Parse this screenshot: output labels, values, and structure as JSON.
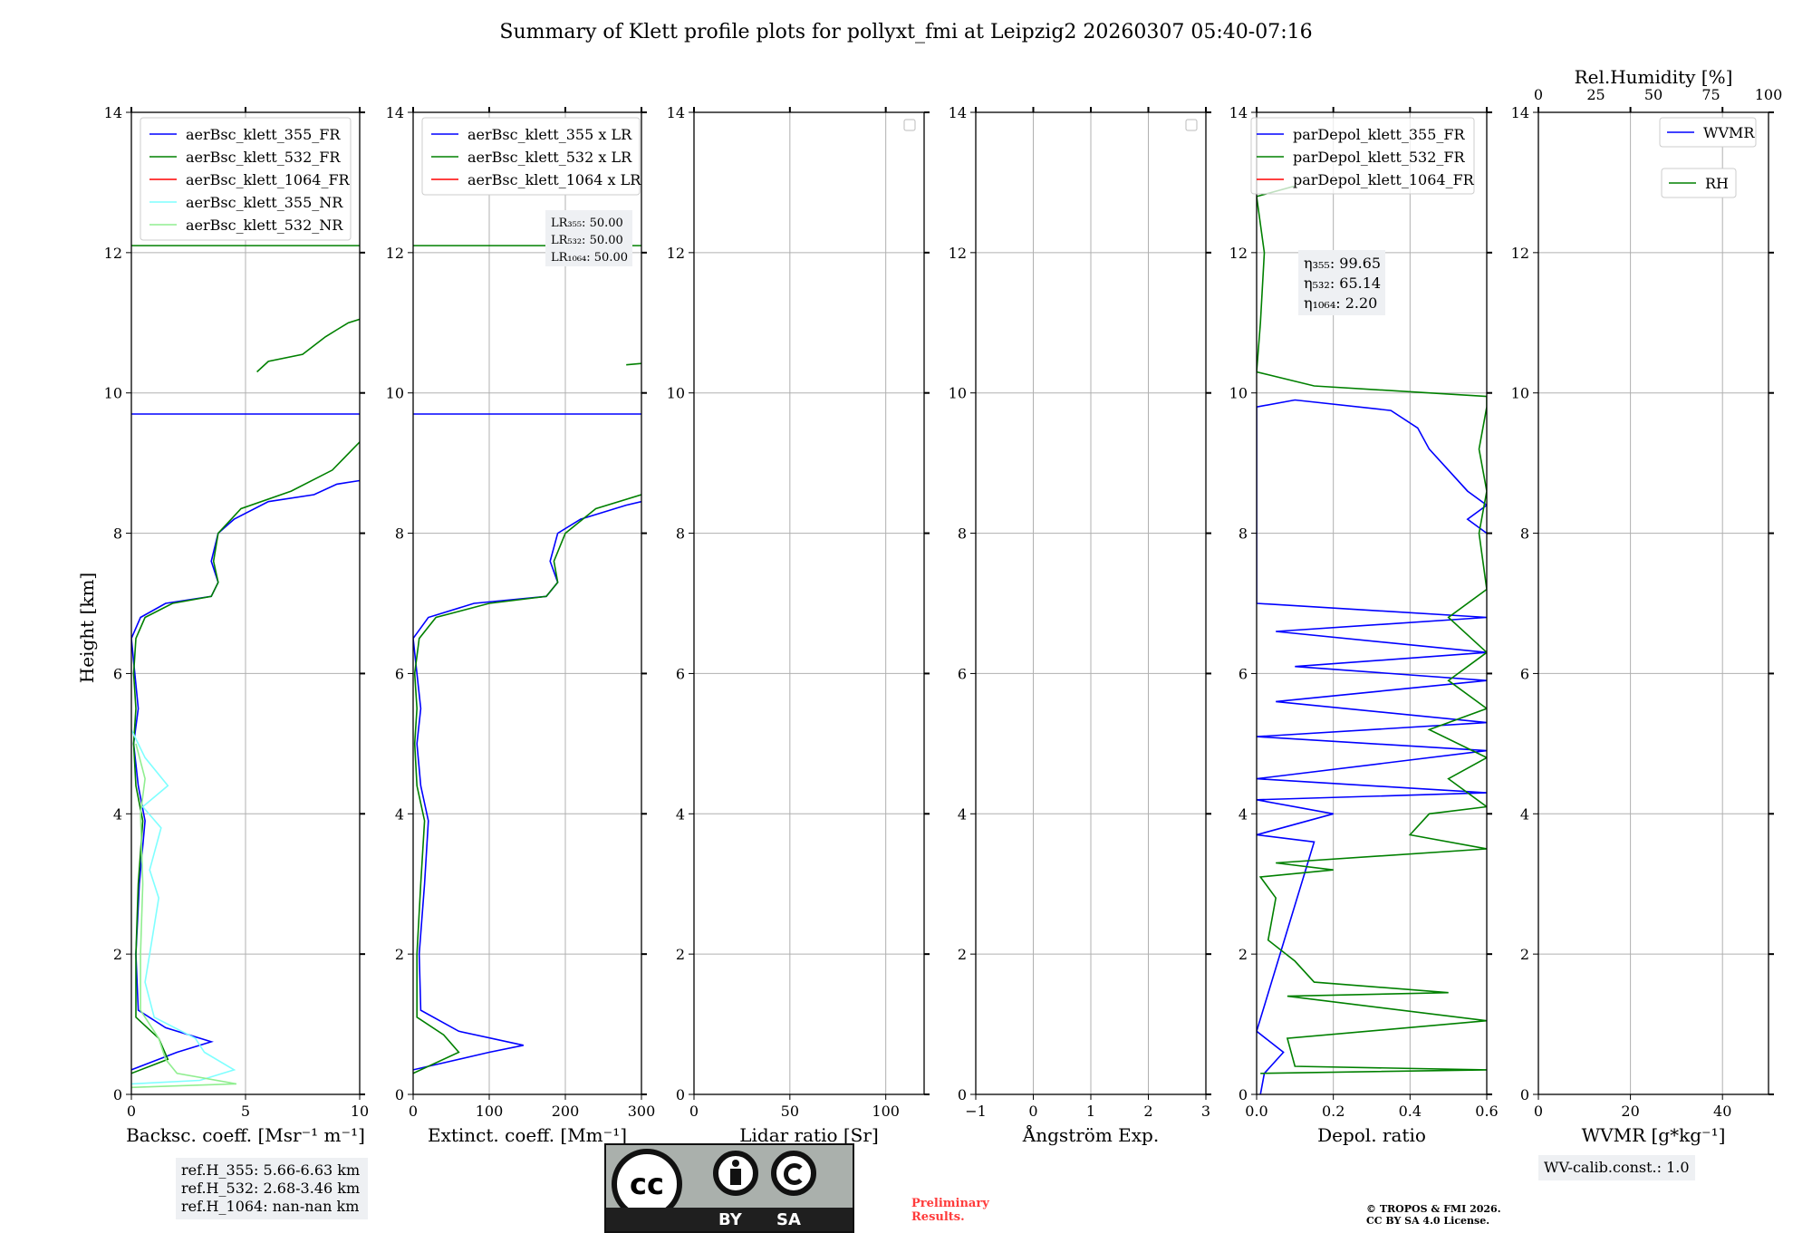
{
  "title": "Summary of Klett profile plots for pollyxt_fmi at Leipzig2 20260307 05:40-07:16",
  "y_label": "Height [km]",
  "y_ticks": [
    "0",
    "2",
    "4",
    "6",
    "8",
    "10",
    "12",
    "14"
  ],
  "colors": {
    "c355": "#0000ff",
    "c532": "#008000",
    "c1064": "#ff0000",
    "nr355": "#7fffff",
    "nr532": "#90ee90"
  },
  "chart_data": [
    {
      "type": "line",
      "name": "backscatter",
      "xlabel": "Backsc. coeff. [Msr⁻¹ m⁻¹]",
      "xlim": [
        0,
        10
      ],
      "ylim": [
        0,
        14
      ],
      "x_ticks": [
        "0",
        "5",
        "10"
      ],
      "legend": [
        "aerBsc_klett_355_FR",
        "aerBsc_klett_532_FR",
        "aerBsc_klett_1064_FR",
        "aerBsc_klett_355_NR",
        "aerBsc_klett_532_NR"
      ],
      "series": [
        {
          "name": "aerBsc_klett_355_FR",
          "color": "c355",
          "points": [
            [
              0,
              0.35
            ],
            [
              2,
              0.6
            ],
            [
              3.5,
              0.75
            ],
            [
              1.5,
              0.95
            ],
            [
              0.3,
              1.2
            ],
            [
              0.2,
              2
            ],
            [
              0.35,
              3
            ],
            [
              0.6,
              3.9
            ],
            [
              0.3,
              4.4
            ],
            [
              0.1,
              5
            ],
            [
              0.3,
              5.5
            ],
            [
              0.15,
              6
            ],
            [
              0,
              6.5
            ],
            [
              0.4,
              6.8
            ],
            [
              1.5,
              7
            ],
            [
              3.5,
              7.1
            ],
            [
              3.8,
              7.3
            ],
            [
              3.5,
              7.6
            ],
            [
              3.8,
              8
            ],
            [
              4.5,
              8.2
            ],
            [
              6,
              8.45
            ],
            [
              8,
              8.55
            ],
            [
              9,
              8.7
            ],
            [
              10,
              8.75
            ]
          ]
        },
        {
          "name": "aerBsc_klett_532_FR",
          "color": "c532",
          "points": [
            [
              0,
              0.3
            ],
            [
              1.6,
              0.5
            ],
            [
              1.2,
              0.8
            ],
            [
              0.2,
              1.1
            ],
            [
              0.2,
              2
            ],
            [
              0.3,
              3
            ],
            [
              0.5,
              3.9
            ],
            [
              0.2,
              4.4
            ],
            [
              0.1,
              5
            ],
            [
              0.2,
              5.5
            ],
            [
              0.1,
              6
            ],
            [
              0.2,
              6.5
            ],
            [
              0.6,
              6.8
            ],
            [
              1.8,
              7
            ],
            [
              3.5,
              7.1
            ],
            [
              3.8,
              7.3
            ],
            [
              3.6,
              7.6
            ],
            [
              3.8,
              8
            ],
            [
              4.8,
              8.35
            ],
            [
              7,
              8.6
            ],
            [
              8.8,
              8.9
            ],
            [
              10,
              9.3
            ]
          ]
        },
        {
          "name": "aerBsc_klett_532_FR_upper",
          "color": "c532",
          "points": [
            [
              5.5,
              10.3
            ],
            [
              6,
              10.45
            ],
            [
              7.5,
              10.55
            ],
            [
              8.5,
              10.8
            ],
            [
              9,
              10.9
            ],
            [
              9.5,
              11
            ],
            [
              10,
              11.05
            ]
          ]
        },
        {
          "name": "aerBsc_klett_355_NR",
          "color": "nr355",
          "points": [
            [
              0,
              0.15
            ],
            [
              3,
              0.2
            ],
            [
              4.5,
              0.35
            ],
            [
              3.2,
              0.6
            ],
            [
              2.8,
              0.8
            ],
            [
              1.0,
              1.1
            ],
            [
              0.6,
              1.6
            ],
            [
              0.9,
              2.2
            ],
            [
              1.2,
              2.8
            ],
            [
              0.8,
              3.2
            ],
            [
              1.3,
              3.8
            ],
            [
              0.5,
              4.1
            ],
            [
              1.6,
              4.4
            ],
            [
              0.6,
              4.8
            ],
            [
              0,
              5.2
            ]
          ]
        },
        {
          "name": "aerBsc_klett_532_NR",
          "color": "nr532",
          "points": [
            [
              0,
              0.1
            ],
            [
              4.6,
              0.15
            ],
            [
              2.0,
              0.3
            ],
            [
              1.5,
              0.5
            ],
            [
              1.2,
              0.8
            ],
            [
              0.4,
              1.2
            ],
            [
              0.4,
              2
            ],
            [
              0.5,
              3
            ],
            [
              0.4,
              4
            ],
            [
              0.6,
              4.5
            ],
            [
              0.2,
              5
            ]
          ]
        }
      ],
      "hlines": [
        {
          "y": 12.1,
          "color": "c532"
        },
        {
          "y": 9.7,
          "color": "c355"
        }
      ]
    },
    {
      "type": "line",
      "name": "extinction",
      "xlabel": "Extinct. coeff. [Mm⁻¹]",
      "xlim": [
        0,
        300
      ],
      "ylim": [
        0,
        14
      ],
      "x_ticks": [
        "0",
        "100",
        "200",
        "300"
      ],
      "legend": [
        "aerBsc_klett_355 x LR",
        "aerBsc_klett_532 x LR",
        "aerBsc_klett_1064 x LR"
      ],
      "lr_labels": [
        "LR₃₅₅: 50.00",
        "LR₅₃₂: 50.00",
        "LR₁₀₆₄: 50.00"
      ],
      "series": [
        {
          "name": "aerBsc_klett_355 x LR",
          "color": "c355",
          "points": [
            [
              0,
              0.35
            ],
            [
              100,
              0.6
            ],
            [
              145,
              0.7
            ],
            [
              60,
              0.9
            ],
            [
              10,
              1.2
            ],
            [
              8,
              2
            ],
            [
              15,
              3
            ],
            [
              20,
              3.9
            ],
            [
              10,
              4.4
            ],
            [
              5,
              5
            ],
            [
              10,
              5.5
            ],
            [
              5,
              6
            ],
            [
              0,
              6.5
            ],
            [
              20,
              6.8
            ],
            [
              80,
              7.0
            ],
            [
              175,
              7.1
            ],
            [
              190,
              7.3
            ],
            [
              180,
              7.6
            ],
            [
              190,
              8
            ],
            [
              220,
              8.2
            ],
            [
              280,
              8.4
            ],
            [
              300,
              8.45
            ]
          ]
        },
        {
          "name": "aerBsc_klett_532 x LR",
          "color": "c532",
          "points": [
            [
              0,
              0.3
            ],
            [
              60,
              0.6
            ],
            [
              40,
              0.85
            ],
            [
              5,
              1.1
            ],
            [
              5,
              2
            ],
            [
              10,
              3
            ],
            [
              15,
              3.9
            ],
            [
              5,
              4.4
            ],
            [
              2,
              5
            ],
            [
              5,
              5.5
            ],
            [
              2,
              6
            ],
            [
              8,
              6.5
            ],
            [
              30,
              6.8
            ],
            [
              100,
              7.0
            ],
            [
              175,
              7.1
            ],
            [
              190,
              7.3
            ],
            [
              185,
              7.6
            ],
            [
              200,
              8
            ],
            [
              240,
              8.35
            ],
            [
              300,
              8.55
            ]
          ]
        },
        {
          "name": "aerBsc_klett_532 x LR upper",
          "color": "c532",
          "points": [
            [
              280,
              10.4
            ],
            [
              300,
              10.42
            ]
          ]
        }
      ],
      "hlines": [
        {
          "y": 12.1,
          "color": "c532"
        },
        {
          "y": 9.7,
          "color": "c355"
        }
      ]
    },
    {
      "type": "line",
      "name": "lidar_ratio",
      "xlabel": "Lidar ratio [Sr]",
      "xlim": [
        0,
        120
      ],
      "ylim": [
        0,
        14
      ],
      "x_ticks": [
        "0",
        "50",
        "100"
      ],
      "series": []
    },
    {
      "type": "line",
      "name": "angstrom",
      "xlabel": "Ångström Exp.",
      "xlim": [
        -1,
        3
      ],
      "ylim": [
        0,
        14
      ],
      "x_ticks": [
        "−1",
        "0",
        "1",
        "2",
        "3"
      ],
      "series": []
    },
    {
      "type": "line",
      "name": "depol",
      "xlabel": "Depol. ratio",
      "xlim": [
        0,
        0.6
      ],
      "ylim": [
        0,
        14
      ],
      "x_ticks": [
        "0.0",
        "0.2",
        "0.4",
        "0.6"
      ],
      "legend": [
        "parDepol_klett_355_FR",
        "parDepol_klett_532_FR",
        "parDepol_klett_1064_FR"
      ],
      "eta_labels": [
        "η₃₅₅: 99.65",
        "η₅₃₂: 65.14",
        "η₁₀₆₄: 2.20"
      ],
      "series": [
        {
          "name": "parDepol_klett_355_FR",
          "color": "c355",
          "points": [
            [
              0.01,
              0
            ],
            [
              0.02,
              0.3
            ],
            [
              0.07,
              0.6
            ],
            [
              0.0,
              0.9
            ],
            [
              0.15,
              3.6
            ],
            [
              0.0,
              3.7
            ],
            [
              0.2,
              4.0
            ],
            [
              0.0,
              4.2
            ],
            [
              0.6,
              4.3
            ],
            [
              0.0,
              4.5
            ],
            [
              0.6,
              4.9
            ],
            [
              0.0,
              5.1
            ],
            [
              0.6,
              5.3
            ],
            [
              0.05,
              5.6
            ],
            [
              0.6,
              5.9
            ],
            [
              0.1,
              6.1
            ],
            [
              0.6,
              6.3
            ],
            [
              0.05,
              6.6
            ],
            [
              0.6,
              6.8
            ],
            [
              0.0,
              7.0
            ],
            [
              0.0,
              9.8
            ],
            [
              0.1,
              9.9
            ],
            [
              0.35,
              9.75
            ],
            [
              0.42,
              9.5
            ],
            [
              0.45,
              9.2
            ],
            [
              0.5,
              8.9
            ],
            [
              0.55,
              8.6
            ],
            [
              0.6,
              8.4
            ],
            [
              0.55,
              8.2
            ],
            [
              0.6,
              8.0
            ]
          ]
        },
        {
          "name": "parDepol_klett_532_FR",
          "color": "c532",
          "points": [
            [
              0.01,
              0.3
            ],
            [
              0.6,
              0.35
            ],
            [
              0.1,
              0.4
            ],
            [
              0.08,
              0.8
            ],
            [
              0.6,
              1.05
            ],
            [
              0.08,
              1.4
            ],
            [
              0.5,
              1.45
            ],
            [
              0.15,
              1.6
            ],
            [
              0.1,
              1.9
            ],
            [
              0.03,
              2.2
            ],
            [
              0.05,
              2.8
            ],
            [
              0.01,
              3.1
            ],
            [
              0.2,
              3.2
            ],
            [
              0.05,
              3.3
            ],
            [
              0.6,
              3.5
            ],
            [
              0.4,
              3.7
            ],
            [
              0.45,
              4.0
            ],
            [
              0.6,
              4.1
            ],
            [
              0.5,
              4.5
            ],
            [
              0.6,
              4.8
            ],
            [
              0.45,
              5.2
            ],
            [
              0.6,
              5.5
            ],
            [
              0.5,
              5.9
            ],
            [
              0.6,
              6.3
            ],
            [
              0.5,
              6.8
            ],
            [
              0.6,
              7.2
            ],
            [
              0.58,
              8.0
            ],
            [
              0.6,
              8.6
            ],
            [
              0.58,
              9.2
            ],
            [
              0.6,
              9.8
            ],
            [
              0.6,
              9.95
            ],
            [
              0.15,
              10.1
            ],
            [
              0.0,
              10.3
            ],
            [
              0.01,
              11
            ],
            [
              0.02,
              12
            ],
            [
              0.0,
              12.8
            ],
            [
              0.1,
              12.95
            ]
          ]
        }
      ]
    },
    {
      "type": "line",
      "name": "wvmr",
      "xlabel": "WVMR [g*kg⁻¹]",
      "xlim": [
        0,
        50
      ],
      "ylim": [
        0,
        14
      ],
      "x_ticks": [
        "0",
        "20",
        "40"
      ],
      "top_xlabel": "Rel.Humidity [%]",
      "top_x_ticks": [
        "0",
        "25",
        "50",
        "75",
        "100"
      ],
      "legend": [
        "WVMR",
        "RH"
      ],
      "series": []
    }
  ],
  "ref_heights": [
    "ref.H_355: 5.66-6.63 km",
    "ref.H_532: 2.68-3.46 km",
    "ref.H_1064: nan-nan km"
  ],
  "wv_calib": "WV-calib.const.: 1.0",
  "cc_badge": {
    "by": "BY",
    "sa": "SA",
    "cc": "cc"
  },
  "preliminary": [
    "Preliminary",
    "Results."
  ],
  "copyright": [
    "© TROPOS & FMI 2026.",
    "CC BY SA 4.0 License."
  ]
}
